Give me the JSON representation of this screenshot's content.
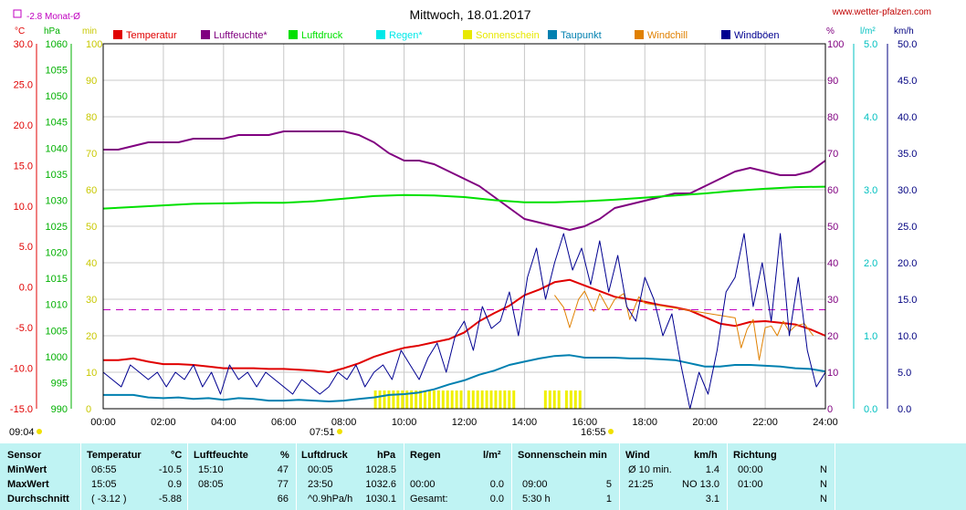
{
  "header": {
    "title": "Mittwoch, 18.01.2017",
    "site": "www.wetter-pfalzen.com",
    "month_avg": "-2.8 Monat-Ø"
  },
  "units": {
    "c": "°C",
    "hpa": "hPa",
    "min": "min",
    "pct": "%",
    "lm2": "l/m²",
    "kmh": "km/h"
  },
  "legend": [
    {
      "label": "Temperatur",
      "color": "#e00000"
    },
    {
      "label": "Luftfeuchte*",
      "color": "#800080"
    },
    {
      "label": "Luftdruck",
      "color": "#00e000"
    },
    {
      "label": "Regen*",
      "color": "#00e8e8"
    },
    {
      "label": "Sonnenschein",
      "color": "#e8e800"
    },
    {
      "label": "Taupunkt",
      "color": "#0080b0"
    },
    {
      "label": "Windchill",
      "color": "#e08000"
    },
    {
      "label": "Windböen",
      "color": "#000090"
    }
  ],
  "sun": {
    "rise": "07:51",
    "set": "16:55",
    "first": "09:04"
  },
  "chart_data": {
    "type": "line",
    "title": "Mittwoch, 18.01.2017",
    "xlim": [
      0,
      24
    ],
    "x_ticks": [
      "00:00",
      "02:00",
      "04:00",
      "06:00",
      "08:00",
      "10:00",
      "12:00",
      "14:00",
      "16:00",
      "18:00",
      "20:00",
      "22:00",
      "24:00"
    ],
    "axes": {
      "temp_c": {
        "range": [
          -15,
          30
        ],
        "ticks": [
          "30.0",
          "25.0",
          "20.0",
          "15.0",
          "10.0",
          "5.0",
          "0.0",
          "-5.0",
          "-10.0",
          "-15.0"
        ]
      },
      "pressure_hpa": {
        "range": [
          990,
          1060
        ],
        "ticks": [
          "1060",
          "1055",
          "1050",
          "1045",
          "1040",
          "1035",
          "1030",
          "1025",
          "1020",
          "1015",
          "1010",
          "1005",
          "1000",
          "995",
          "990"
        ]
      },
      "sun_min": {
        "range": [
          0,
          100
        ],
        "ticks": [
          "100",
          "90",
          "80",
          "70",
          "60",
          "50",
          "40",
          "30",
          "20",
          "10",
          "0"
        ]
      },
      "humidity_pct": {
        "range": [
          0,
          100
        ],
        "ticks": [
          "100",
          "90",
          "80",
          "70",
          "60",
          "50",
          "40",
          "30",
          "20",
          "10",
          "0"
        ]
      },
      "rain_lm2": {
        "range": [
          0,
          5
        ],
        "ticks": [
          "5.0",
          "4.0",
          "3.0",
          "2.0",
          "1.0",
          "0.0"
        ]
      },
      "wind_kmh": {
        "range": [
          0,
          50
        ],
        "ticks": [
          "50.0",
          "45.0",
          "40.0",
          "35.0",
          "30.0",
          "25.0",
          "20.0",
          "15.0",
          "10.0",
          "5.0",
          "0.0"
        ]
      }
    },
    "month_avg_temp": -2.8,
    "series": [
      {
        "name": "Luftfeuchte*",
        "axis": "humidity_pct",
        "color": "#800080",
        "x": [
          0,
          0.5,
          1,
          1.5,
          2,
          2.5,
          3,
          3.5,
          4,
          4.5,
          5,
          5.5,
          6,
          6.5,
          7,
          7.5,
          8,
          8.5,
          9,
          9.5,
          10,
          10.5,
          11,
          11.5,
          12,
          12.5,
          13,
          13.5,
          14,
          14.5,
          15,
          15.5,
          16,
          16.5,
          17,
          17.5,
          18,
          18.5,
          19,
          19.5,
          20,
          20.5,
          21,
          21.5,
          22,
          22.5,
          23,
          23.5,
          24
        ],
        "y": [
          71,
          71,
          72,
          73,
          73,
          73,
          74,
          74,
          74,
          75,
          75,
          75,
          76,
          76,
          76,
          76,
          76,
          75,
          73,
          70,
          68,
          68,
          67,
          65,
          63,
          61,
          58,
          55,
          52,
          51,
          50,
          49,
          50,
          52,
          55,
          56,
          57,
          58,
          59,
          59,
          61,
          63,
          65,
          66,
          65,
          64,
          64,
          65,
          68
        ]
      },
      {
        "name": "Luftdruck",
        "axis": "pressure_hpa",
        "color": "#00e000",
        "x": [
          0,
          1,
          2,
          3,
          4,
          5,
          6,
          7,
          8,
          9,
          10,
          11,
          12,
          13,
          14,
          15,
          16,
          17,
          18,
          19,
          20,
          21,
          22,
          23,
          24
        ],
        "y": [
          1028.4,
          1028.7,
          1029.0,
          1029.3,
          1029.4,
          1029.5,
          1029.5,
          1029.8,
          1030.3,
          1030.8,
          1031.0,
          1030.9,
          1030.6,
          1030.0,
          1029.6,
          1029.6,
          1029.8,
          1030.1,
          1030.5,
          1030.9,
          1031.3,
          1031.8,
          1032.2,
          1032.5,
          1032.6
        ]
      },
      {
        "name": "Temperatur",
        "axis": "temp_c",
        "color": "#e00000",
        "x": [
          0,
          0.5,
          1,
          1.5,
          2,
          2.5,
          3,
          3.5,
          4,
          4.5,
          5,
          5.5,
          6,
          6.5,
          7,
          7.5,
          8,
          8.5,
          9,
          9.5,
          10,
          10.5,
          11,
          11.5,
          12,
          12.5,
          13,
          13.5,
          14,
          14.5,
          15,
          15.5,
          16,
          16.5,
          17,
          17.5,
          18,
          18.5,
          19,
          19.5,
          20,
          20.5,
          21,
          21.5,
          22,
          22.5,
          23,
          23.5,
          24
        ],
        "y": [
          -9.0,
          -9.0,
          -8.8,
          -9.2,
          -9.5,
          -9.5,
          -9.6,
          -9.8,
          -10.0,
          -10.0,
          -10.0,
          -10.1,
          -10.1,
          -10.2,
          -10.3,
          -10.5,
          -10.0,
          -9.4,
          -8.6,
          -8.0,
          -7.5,
          -7.2,
          -6.8,
          -6.4,
          -5.6,
          -4.2,
          -3.2,
          -2.3,
          -1.0,
          -0.3,
          0.6,
          0.9,
          0.2,
          -0.5,
          -1.2,
          -1.5,
          -1.8,
          -2.2,
          -2.5,
          -2.9,
          -3.7,
          -4.5,
          -4.8,
          -4.3,
          -4.2,
          -4.4,
          -4.6,
          -5.2,
          -6.0
        ]
      },
      {
        "name": "Windchill",
        "axis": "temp_c",
        "color": "#e08000",
        "x": [
          15,
          15.3,
          15.5,
          15.8,
          16,
          16.3,
          16.5,
          16.8,
          17,
          17.3,
          17.5,
          17.8,
          18,
          21,
          21.2,
          21.4,
          21.6,
          21.8,
          22,
          22.2,
          22.4,
          22.6,
          22.8,
          23,
          23.3,
          23.6
        ],
        "y": [
          -1.0,
          -2.5,
          -5.0,
          -1.5,
          -0.5,
          -3.0,
          -0.8,
          -2.8,
          -1.5,
          -0.8,
          -4.0,
          -1.2,
          -2.0,
          -3.8,
          -7.5,
          -5.2,
          -4.0,
          -9.0,
          -5.0,
          -4.8,
          -6.0,
          -4.2,
          -5.5,
          -4.8,
          -4.5,
          -6.0
        ]
      },
      {
        "name": "Taupunkt",
        "axis": "temp_c",
        "color": "#0080b0",
        "x": [
          0,
          0.5,
          1,
          1.5,
          2,
          2.5,
          3,
          3.5,
          4,
          4.5,
          5,
          5.5,
          6,
          6.5,
          7,
          7.5,
          8,
          8.5,
          9,
          9.5,
          10,
          10.5,
          11,
          11.5,
          12,
          12.5,
          13,
          13.5,
          14,
          14.5,
          15,
          15.5,
          16,
          16.5,
          17,
          17.5,
          18,
          18.5,
          19,
          19.5,
          20,
          20.5,
          21,
          21.5,
          22,
          22.5,
          23,
          23.5,
          24
        ],
        "y": [
          -13.3,
          -13.3,
          -13.3,
          -13.6,
          -13.7,
          -13.6,
          -13.8,
          -13.7,
          -13.9,
          -13.7,
          -13.8,
          -14.0,
          -14.0,
          -13.9,
          -14.0,
          -14.1,
          -14.0,
          -13.8,
          -13.6,
          -13.3,
          -13.2,
          -13.0,
          -12.6,
          -12.0,
          -11.5,
          -10.8,
          -10.3,
          -9.6,
          -9.2,
          -8.8,
          -8.5,
          -8.4,
          -8.7,
          -8.7,
          -8.7,
          -8.8,
          -8.8,
          -8.9,
          -9.0,
          -9.4,
          -9.8,
          -9.8,
          -9.6,
          -9.6,
          -9.7,
          -9.8,
          -10.0,
          -10.1,
          -10.4
        ]
      },
      {
        "name": "Windböen",
        "axis": "wind_kmh",
        "color": "#000090",
        "x": [
          0,
          0.3,
          0.6,
          0.9,
          1.2,
          1.5,
          1.8,
          2.1,
          2.4,
          2.7,
          3,
          3.3,
          3.6,
          3.9,
          4.2,
          4.5,
          4.8,
          5.1,
          5.4,
          5.7,
          6,
          6.3,
          6.6,
          6.9,
          7.2,
          7.5,
          7.8,
          8.1,
          8.4,
          8.7,
          9,
          9.3,
          9.6,
          9.9,
          10.2,
          10.5,
          10.8,
          11.1,
          11.4,
          11.7,
          12,
          12.3,
          12.6,
          12.9,
          13.2,
          13.5,
          13.8,
          14.1,
          14.4,
          14.7,
          15,
          15.3,
          15.6,
          15.9,
          16.2,
          16.5,
          16.8,
          17.1,
          17.4,
          17.7,
          18,
          18.3,
          18.6,
          18.9,
          19.2,
          19.5,
          19.8,
          20.1,
          20.4,
          20.7,
          21,
          21.3,
          21.6,
          21.9,
          22.2,
          22.5,
          22.8,
          23.1,
          23.4,
          23.7,
          24
        ],
        "y": [
          5,
          4,
          3,
          6,
          5,
          4,
          5,
          3,
          5,
          4,
          6,
          3,
          5,
          2,
          6,
          4,
          5,
          3,
          5,
          4,
          3,
          2,
          4,
          3,
          2,
          3,
          5,
          4,
          6,
          3,
          5,
          6,
          4,
          8,
          6,
          4,
          7,
          9,
          5,
          10,
          12,
          8,
          14,
          11,
          12,
          16,
          10,
          18,
          22,
          15,
          20,
          24,
          19,
          22,
          17,
          23,
          16,
          21,
          14,
          12,
          18,
          15,
          10,
          13,
          6,
          0,
          5,
          2,
          8,
          16,
          18,
          24,
          14,
          20,
          12,
          24,
          10,
          18,
          8,
          3,
          5
        ]
      }
    ],
    "sunshine_bars": {
      "axis": "sun_min",
      "x": [
        9.0,
        9.15,
        9.3,
        9.45,
        9.6,
        9.75,
        9.9,
        10.05,
        10.2,
        10.35,
        10.5,
        10.65,
        10.8,
        10.95,
        11.1,
        11.25,
        11.4,
        11.55,
        11.7,
        11.85,
        12.1,
        12.25,
        12.4,
        12.55,
        12.7,
        12.85,
        13.0,
        13.15,
        13.3,
        13.45,
        13.6,
        14.65,
        14.8,
        14.95,
        15.1,
        15.35,
        15.5,
        15.65,
        15.8
      ],
      "y": [
        5,
        5,
        5,
        5,
        5,
        5,
        5,
        5,
        5,
        5,
        5,
        5,
        5,
        5,
        5,
        5,
        5,
        5,
        5,
        5,
        5,
        5,
        5,
        5,
        5,
        5,
        5,
        5,
        5,
        5,
        5,
        5,
        5,
        5,
        5,
        5,
        5,
        5,
        5
      ]
    }
  },
  "table": {
    "headers": {
      "sensor": "Sensor",
      "temp": "Temperatur",
      "temp_unit": "°C",
      "hum": "Luftfeuchte",
      "hum_unit": "%",
      "press": "Luftdruck",
      "press_unit": "hPa",
      "rain": "Regen",
      "rain_unit": "l/m²",
      "sun": "Sonnenschein min",
      "wind": "Wind",
      "wind_unit": "km/h",
      "dir": "Richtung"
    },
    "rows": [
      {
        "label": "MinWert",
        "t_time": "06:55",
        "t_val": "-10.5",
        "h_time": "15:10",
        "h_val": "47",
        "p_time": "00:05",
        "p_val": "1028.5",
        "r_time": "",
        "r_val": "",
        "s_time": "",
        "s_val": "",
        "w_time": "Ø 10 min.",
        "w_val": "1.4",
        "d_time": "00:00",
        "d_val": "N"
      },
      {
        "label": "MaxWert",
        "t_time": "15:05",
        "t_val": "0.9",
        "h_time": "08:05",
        "h_val": "77",
        "p_time": "23:50",
        "p_val": "1032.6",
        "r_time": "00:00",
        "r_val": "0.0",
        "s_time": "09:00",
        "s_val": "5",
        "w_time": "21:25",
        "w_val": "NO 13.0",
        "d_time": "01:00",
        "d_val": "N"
      },
      {
        "label": "Durchschnitt",
        "t_time": "( -3.12 )",
        "t_val": "-5.88",
        "h_time": "",
        "h_val": "66",
        "p_time": "^0.9hPa/h",
        "p_val": "1030.1",
        "r_time": "Gesamt:",
        "r_val": "0.0",
        "s_time": "5:30 h",
        "s_val": "1",
        "w_time": "",
        "w_val": "3.1",
        "d_time": "",
        "d_val": "N"
      }
    ]
  }
}
